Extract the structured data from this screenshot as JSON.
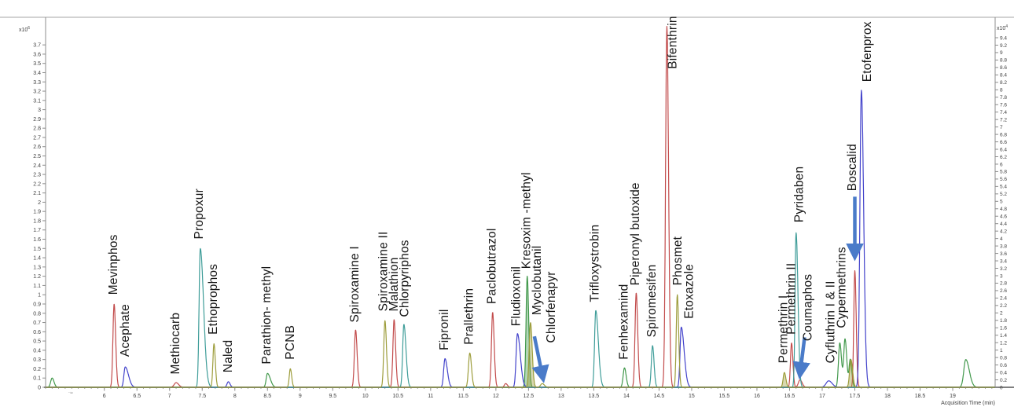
{
  "figure": {
    "kind": "GC-MS pesticide chromatogram overlay",
    "background": "#ffffff"
  },
  "chart_data": {
    "type": "line",
    "title": "",
    "xlabel": "Acquisition Time (min)",
    "grid": "off",
    "legend": "none",
    "x_axis": {
      "range": [
        5.1,
        19.65
      ],
      "major_tick_step": 0.5,
      "minor_tick_step": 0.1,
      "tick_labels": [
        "6",
        "6.5",
        "7",
        "7.5",
        "8",
        "8.5",
        "9",
        "9.5",
        "10",
        "10.5",
        "11",
        "11.5",
        "12",
        "12.5",
        "13",
        "13.5",
        "14",
        "14.5",
        "15",
        "15.5",
        "16",
        "16.5",
        "17",
        "17.5",
        "18",
        "18.5",
        "19"
      ],
      "tick_values": [
        6,
        6.5,
        7,
        7.5,
        8,
        8.5,
        9,
        9.5,
        10,
        10.5,
        11,
        11.5,
        12,
        12.5,
        13,
        13.5,
        14,
        14.5,
        15,
        15.5,
        16,
        16.5,
        17,
        17.5,
        18,
        18.5,
        19
      ],
      "stray_mark": {
        "text": "⁻¹ᵉ",
        "t": 5.48
      }
    },
    "left_axis": {
      "unit_label": "x10",
      "unit_exponent": "6",
      "range": [
        0,
        4.0
      ],
      "tick_step": 0.1,
      "tick_labels": [
        "0",
        "0.1",
        "0.2",
        "0.3",
        "0.4",
        "0.5",
        "0.6",
        "0.7",
        "0.8",
        "0.9",
        "1",
        "1.1",
        "1.2",
        "1.3",
        "1.4",
        "1.5",
        "1.6",
        "1.7",
        "1.8",
        "1.9",
        "2",
        "2.1",
        "2.2",
        "2.3",
        "2.4",
        "2.5",
        "2.6",
        "2.7",
        "2.8",
        "2.9",
        "3",
        "3.1",
        "3.2",
        "3.3",
        "3.4",
        "3.5",
        "3.6",
        "3.7"
      ]
    },
    "right_axis": {
      "unit_label": "x10",
      "unit_exponent": "4",
      "range": [
        0,
        9.95
      ],
      "tick_step": 0.2,
      "tick_labels": [
        "0",
        "0.2",
        "0.4",
        "0.6",
        "0.8",
        "1",
        "1.2",
        "1.4",
        "1.6",
        "1.8",
        "2",
        "2.2",
        "2.4",
        "2.6",
        "2.8",
        "3",
        "3.2",
        "3.4",
        "3.6",
        "3.8",
        "4",
        "4.2",
        "4.4",
        "4.6",
        "4.8",
        "5",
        "5.2",
        "5.4",
        "5.6",
        "5.8",
        "6",
        "6.2",
        "6.4",
        "6.6",
        "6.8",
        "7",
        "7.2",
        "7.4",
        "7.6",
        "7.8",
        "8",
        "8.2",
        "8.4",
        "8.6",
        "8.8",
        "9",
        "9.2",
        "9.4"
      ]
    },
    "colors": {
      "trace_green": "#41984b",
      "trace_red": "#c24b4b",
      "trace_blue": "#4343cb",
      "trace_teal": "#3f9d99",
      "trace_olive": "#9d9d3c",
      "annotation_arrow": "#4a7bc9",
      "axis_line": "#8c8c8c",
      "baseline": "#7f7f7f",
      "top_border": "#a6a6a6"
    },
    "traces": [
      {
        "id": "green",
        "color": "#41984b",
        "peaks": [
          {
            "t": 5.2,
            "h": 0.1,
            "s": 0.022
          },
          {
            "t": 8.5,
            "h": 0.15,
            "s": 0.02,
            "tail": 2.2,
            "name": "Parathion- methyl"
          },
          {
            "t": 12.48,
            "h": 1.2,
            "s": 0.018,
            "fill": true,
            "name": "Kresoxim -methyl"
          },
          {
            "t": 13.97,
            "h": 0.21,
            "s": 0.02,
            "name": "Fenhexamind"
          },
          {
            "t": 17.27,
            "h": 0.48,
            "s": 0.02,
            "name": "Cyfluthrin I & II"
          },
          {
            "t": 17.35,
            "h": 0.52,
            "s": 0.02,
            "name": "Cypermethrins"
          },
          {
            "t": 17.43,
            "h": 0.3,
            "s": 0.018
          },
          {
            "t": 19.2,
            "h": 0.3,
            "s": 0.03,
            "tail": 1.8
          }
        ]
      },
      {
        "id": "red",
        "color": "#c24b4b",
        "peaks": [
          {
            "t": 6.15,
            "h": 0.9,
            "s": 0.018,
            "name": "Mevinphos"
          },
          {
            "t": 7.1,
            "h": 0.05,
            "s": 0.03,
            "name": "Methiocarb"
          },
          {
            "t": 9.85,
            "h": 0.62,
            "s": 0.018,
            "name": "Spiroxamine I"
          },
          {
            "t": 10.44,
            "h": 0.73,
            "s": 0.018,
            "name": "Malathion"
          },
          {
            "t": 11.95,
            "h": 0.81,
            "s": 0.018,
            "name": "Paclobutrazol"
          },
          {
            "t": 12.15,
            "h": 0.04,
            "s": 0.02
          },
          {
            "t": 14.15,
            "h": 1.02,
            "s": 0.018,
            "name": "Piperonyl butoxide"
          },
          {
            "t": 14.62,
            "h": 3.9,
            "s": 0.02,
            "name": "Bifenthrin"
          },
          {
            "t": 16.53,
            "h": 0.48,
            "s": 0.016,
            "name": "Permethrin II"
          },
          {
            "t": 16.66,
            "h": 0.08,
            "s": 0.025,
            "name": "Coumaphos"
          },
          {
            "t": 17.5,
            "h": 1.26,
            "s": 0.016,
            "name": "Boscalid"
          }
        ]
      },
      {
        "id": "blue",
        "color": "#4343cb",
        "peaks": [
          {
            "t": 6.32,
            "h": 0.22,
            "s": 0.02,
            "tail": 2.5,
            "name": "Acephate"
          },
          {
            "t": 7.9,
            "h": 0.06,
            "s": 0.02,
            "name": "Naled"
          },
          {
            "t": 11.22,
            "h": 0.31,
            "s": 0.02,
            "tail": 1.8,
            "name": "Fipronil"
          },
          {
            "t": 12.33,
            "h": 0.58,
            "s": 0.02,
            "tail": 2.2,
            "name": "Fludioxonil"
          },
          {
            "t": 14.84,
            "h": 0.65,
            "s": 0.018,
            "tail": 2.5,
            "name": "Etoxazole"
          },
          {
            "t": 17.1,
            "h": 0.07,
            "s": 0.04
          },
          {
            "t": 17.6,
            "h": 3.21,
            "s": 0.022,
            "tail": 1.6,
            "name": "Etofenprox"
          }
        ]
      },
      {
        "id": "teal",
        "color": "#3f9d99",
        "peaks": [
          {
            "t": 7.47,
            "h": 1.5,
            "s": 0.018,
            "tail": 2.8,
            "name": "Propoxur"
          },
          {
            "t": 10.59,
            "h": 0.68,
            "s": 0.018,
            "tail": 1.8,
            "name": "Chlorpyriphos"
          },
          {
            "t": 13.53,
            "h": 0.83,
            "s": 0.018,
            "tail": 2.2,
            "name": "Trifloxystrobin"
          },
          {
            "t": 14.4,
            "h": 0.45,
            "s": 0.018,
            "name": "Spiromesifen"
          },
          {
            "t": 16.6,
            "h": 1.67,
            "s": 0.016,
            "tail": 1.8,
            "name": "Pyridaben"
          }
        ]
      },
      {
        "id": "olive",
        "color": "#9d9d3c",
        "peaks": [
          {
            "t": 7.68,
            "h": 0.47,
            "s": 0.016,
            "name": "Ethoprophos"
          },
          {
            "t": 8.85,
            "h": 0.2,
            "s": 0.016,
            "name": "PCNB"
          },
          {
            "t": 10.3,
            "h": 0.72,
            "s": 0.018,
            "name": "Spiroxamine II"
          },
          {
            "t": 11.6,
            "h": 0.37,
            "s": 0.02,
            "name": "Prallethrin"
          },
          {
            "t": 12.53,
            "h": 0.7,
            "s": 0.02,
            "fill": true,
            "name": "Myclobutanil"
          },
          {
            "t": 12.71,
            "h": 0.04,
            "s": 0.025,
            "name": "Chlorfenapyr"
          },
          {
            "t": 14.78,
            "h": 1.0,
            "s": 0.016,
            "name": "Phosmet"
          },
          {
            "t": 16.42,
            "h": 0.16,
            "s": 0.018,
            "fill": true,
            "name": "Permethrin I"
          },
          {
            "t": 17.44,
            "h": 0.3,
            "s": 0.02,
            "fill": true
          }
        ]
      }
    ],
    "peak_labels": [
      {
        "text": "Mevinphos",
        "t": 6.13,
        "v": 1.0
      },
      {
        "text": "Acephate",
        "t": 6.31,
        "v": 0.33
      },
      {
        "text": "Methiocarb",
        "t": 7.08,
        "v": 0.14
      },
      {
        "text": "Propoxur",
        "t": 7.44,
        "v": 1.6
      },
      {
        "text": "Ethoprophos",
        "t": 7.66,
        "v": 0.57
      },
      {
        "text": "Naled",
        "t": 7.89,
        "v": 0.16
      },
      {
        "text": "Parathion- methyl",
        "t": 8.48,
        "v": 0.25
      },
      {
        "text": "PCNB",
        "t": 8.84,
        "v": 0.3
      },
      {
        "text": "Spiroxamine I",
        "t": 9.83,
        "v": 0.7
      },
      {
        "text": "Spiroxamine II",
        "t": 10.27,
        "v": 0.82
      },
      {
        "text": "Malathion",
        "t": 10.43,
        "v": 0.82
      },
      {
        "text": "Chlorpyriphos",
        "t": 10.59,
        "v": 0.76
      },
      {
        "text": "Fipronil",
        "t": 11.2,
        "v": 0.4
      },
      {
        "text": "Prallethrin",
        "t": 11.58,
        "v": 0.46
      },
      {
        "text": "Paclobutrazol",
        "t": 11.93,
        "v": 0.9
      },
      {
        "text": "Fludioxonil",
        "t": 12.3,
        "v": 0.66
      },
      {
        "text": "Kresoxim -methyl",
        "t": 12.46,
        "v": 1.28
      },
      {
        "text": "Myclobutanil",
        "t": 12.62,
        "v": 0.78
      },
      {
        "text": "Chlorfenapyr",
        "t": 12.84,
        "v": 0.48
      },
      {
        "text": "Trifloxystrobin",
        "t": 13.51,
        "v": 0.92
      },
      {
        "text": "Fenhexamind",
        "t": 13.95,
        "v": 0.3
      },
      {
        "text": "Piperonyl butoxide",
        "t": 14.13,
        "v": 1.1
      },
      {
        "text": "Spiromesifen",
        "t": 14.38,
        "v": 0.54
      },
      {
        "text": "Bifenthrin",
        "t": 14.7,
        "v": 3.44
      },
      {
        "text": "Phosmet",
        "t": 14.78,
        "v": 1.1
      },
      {
        "text": "Etoxazole",
        "t": 14.95,
        "v": 0.74
      },
      {
        "text": "Permethrin I",
        "t": 16.4,
        "v": 0.26
      },
      {
        "text": "Permethrin II",
        "t": 16.52,
        "v": 0.57
      },
      {
        "text": "Pyridaben",
        "t": 16.64,
        "v": 1.78
      },
      {
        "text": "Coumaphos",
        "t": 16.77,
        "v": 0.5
      },
      {
        "text": "Cyfluthrin I & II",
        "t": 17.12,
        "v": 0.26
      },
      {
        "text": "Cypermethrins",
        "t": 17.29,
        "v": 0.64
      },
      {
        "text": "Boscalid",
        "t": 17.45,
        "v": 2.12
      },
      {
        "text": "Etofenprox",
        "t": 17.68,
        "v": 3.3
      }
    ],
    "arrows": [
      {
        "for": "Chlorfenapyr",
        "from": {
          "t": 12.59,
          "v": 0.55
        },
        "to": {
          "t": 12.72,
          "v": 0.1
        }
      },
      {
        "for": "Coumaphos",
        "from": {
          "t": 16.73,
          "v": 0.54
        },
        "to": {
          "t": 16.66,
          "v": 0.14
        }
      },
      {
        "for": "Boscalid",
        "from": {
          "t": 17.5,
          "v": 2.06
        },
        "to": {
          "t": 17.5,
          "v": 1.42
        }
      }
    ]
  }
}
